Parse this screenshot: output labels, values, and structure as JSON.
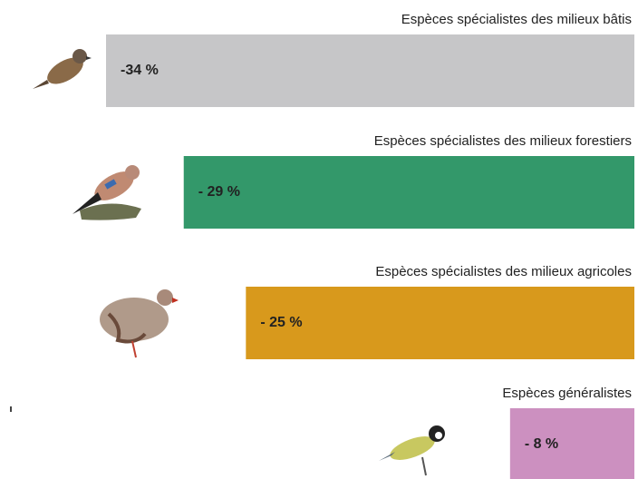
{
  "chart_data": {
    "type": "bar",
    "categories": [
      "Espèces spécialistes des milieux bâtis",
      "Espèces spécialistes des milieux forestiers",
      "Espèces spécialistes des milieux agricoles",
      "Espèces généralistes"
    ],
    "values": [
      -34,
      -29,
      -25,
      -8
    ],
    "value_labels": [
      "-34 %",
      "- 29 %",
      "- 25 %",
      "- 8 %"
    ],
    "colors": [
      "#c6c6c8",
      "#33986a",
      "#d8991c",
      "#cc90c0"
    ],
    "xlim": [
      -34,
      0
    ]
  }
}
